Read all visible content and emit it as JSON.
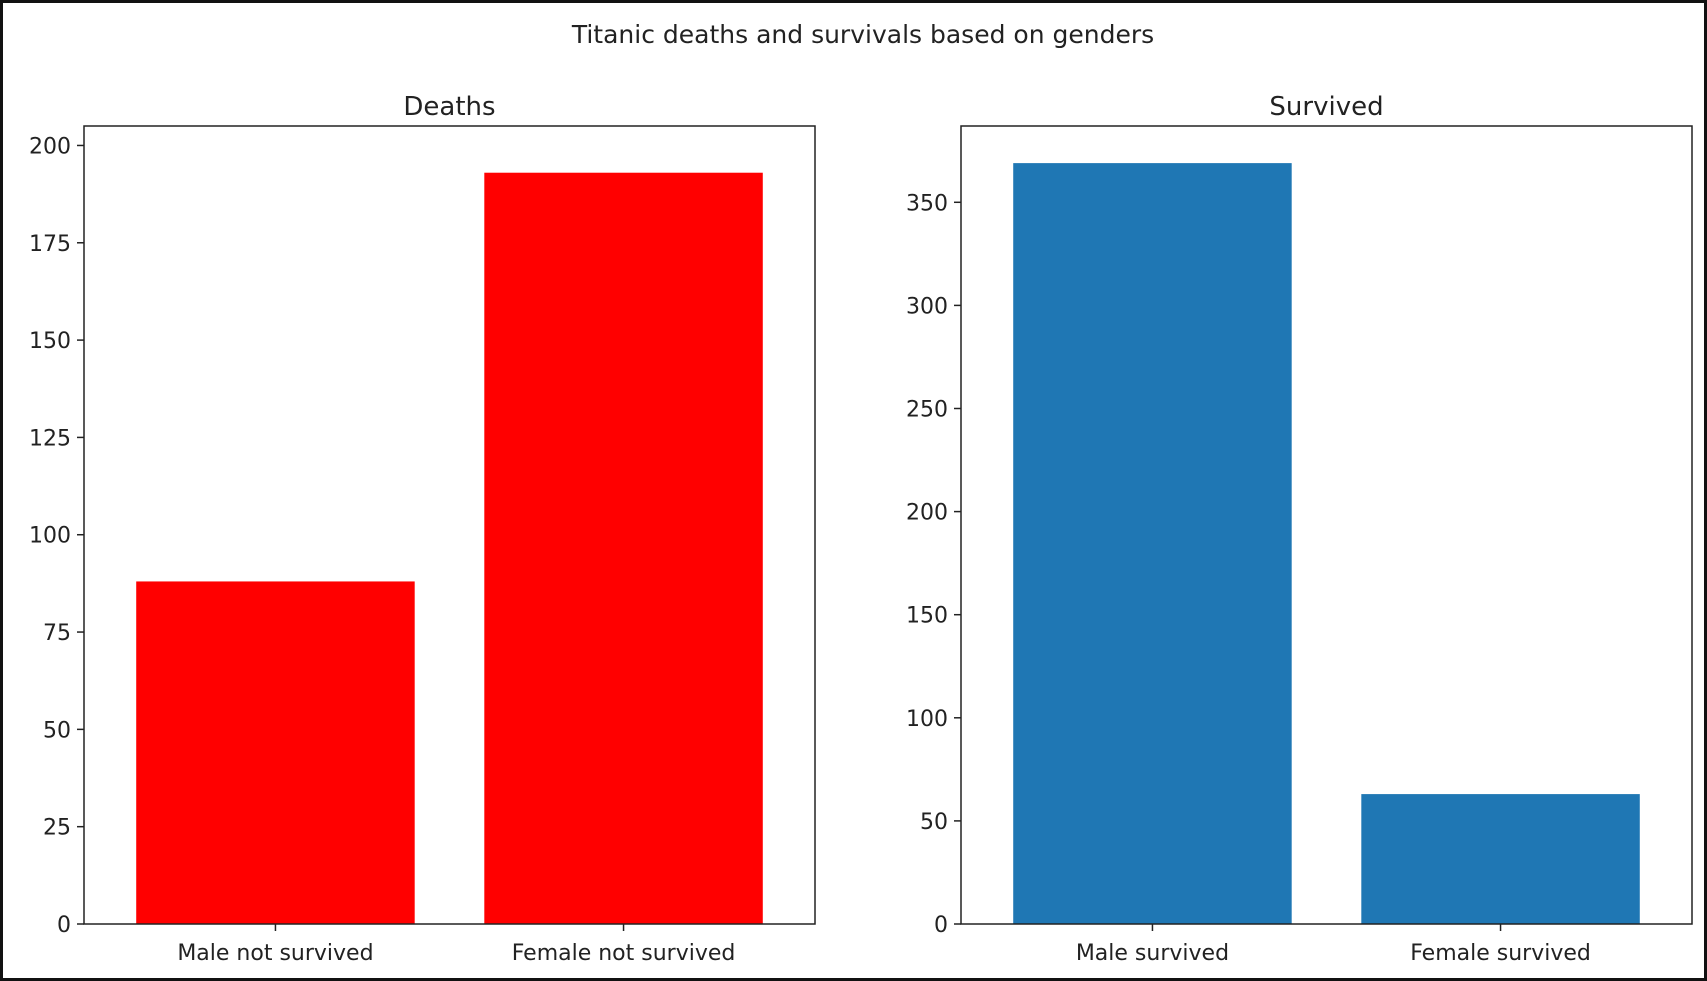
{
  "figure": {
    "suptitle": "Titanic deaths and survivals based on genders"
  },
  "chart_data": [
    {
      "type": "bar",
      "title": "Deaths",
      "xlabel": "",
      "ylabel": "",
      "categories": [
        "Male not survived",
        "Female not survived"
      ],
      "values": [
        88,
        193
      ],
      "ylim": [
        0,
        205
      ],
      "yticks": [
        0,
        25,
        50,
        75,
        100,
        125,
        150,
        175,
        200
      ],
      "color": "#ff0000",
      "grid": false,
      "legend": null
    },
    {
      "type": "bar",
      "title": "Survived",
      "xlabel": "",
      "ylabel": "",
      "categories": [
        "Male survived",
        "Female survived"
      ],
      "values": [
        369,
        63
      ],
      "ylim": [
        0,
        387
      ],
      "yticks": [
        0,
        50,
        100,
        150,
        200,
        250,
        300,
        350
      ],
      "color": "#1f77b4",
      "grid": false,
      "legend": null
    }
  ]
}
